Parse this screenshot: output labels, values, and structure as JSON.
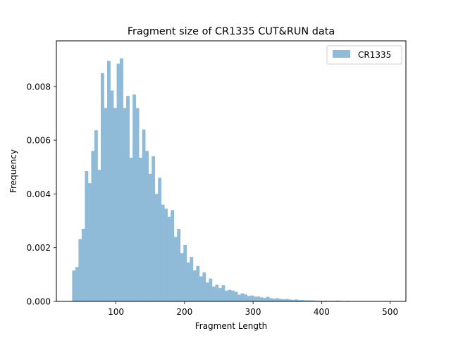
{
  "chart_data": {
    "type": "bar",
    "title": "Fragment size of CR1335 CUT&RUN data",
    "xlabel": "Fragment Length",
    "ylabel": "Frequency",
    "xlim": [
      13,
      523
    ],
    "ylim": [
      0,
      0.0097
    ],
    "xticks": [
      "100",
      "200",
      "300",
      "400",
      "500"
    ],
    "xtick_values": [
      100,
      200,
      300,
      400,
      500
    ],
    "yticks": [
      "0.000",
      "0.002",
      "0.004",
      "0.006",
      "0.008"
    ],
    "ytick_values": [
      0,
      0.002,
      0.004,
      0.006,
      0.008
    ],
    "grid": false,
    "legend_position": "top-right",
    "bar_color": "#8fbad8",
    "bin_range": [
      36,
      500
    ],
    "series": [
      {
        "name": "CR1335",
        "values": [
          0.00115,
          0.00128,
          0.00232,
          0.0027,
          0.00485,
          0.0044,
          0.0056,
          0.00637,
          0.0049,
          0.0085,
          0.0072,
          0.00895,
          0.00785,
          0.0072,
          0.00885,
          0.00905,
          0.0072,
          0.00765,
          0.00535,
          0.0077,
          0.0072,
          0.00535,
          0.0064,
          0.0056,
          0.00475,
          0.0054,
          0.004,
          0.0046,
          0.0036,
          0.00345,
          0.00315,
          0.0034,
          0.0024,
          0.0027,
          0.0018,
          0.0021,
          0.00145,
          0.00165,
          0.00115,
          0.00132,
          0.00093,
          0.00108,
          0.0007,
          0.00085,
          0.00055,
          0.00062,
          0.0005,
          0.0006,
          0.0004,
          0.00043,
          0.0004,
          0.00036,
          0.00025,
          0.0003,
          0.00026,
          0.0002,
          0.00022,
          0.00018,
          0.00018,
          0.00015,
          0.00013,
          0.00017,
          0.00012,
          0.0001,
          0.00012,
          9e-05,
          8e-05,
          9e-05,
          7e-05,
          6e-05,
          7e-05,
          5e-05,
          5e-05,
          4e-05,
          4e-05,
          4e-05,
          3e-05,
          3e-05,
          2e-05,
          3e-05,
          2e-05,
          2e-05,
          2e-05,
          3e-05,
          2e-05,
          1e-05,
          2e-05,
          1e-05,
          1e-05,
          1e-05,
          1e-05,
          1e-05,
          1e-05,
          1e-05,
          1e-05,
          1e-05,
          1e-05,
          1e-05,
          1e-05,
          1e-05
        ]
      }
    ]
  }
}
